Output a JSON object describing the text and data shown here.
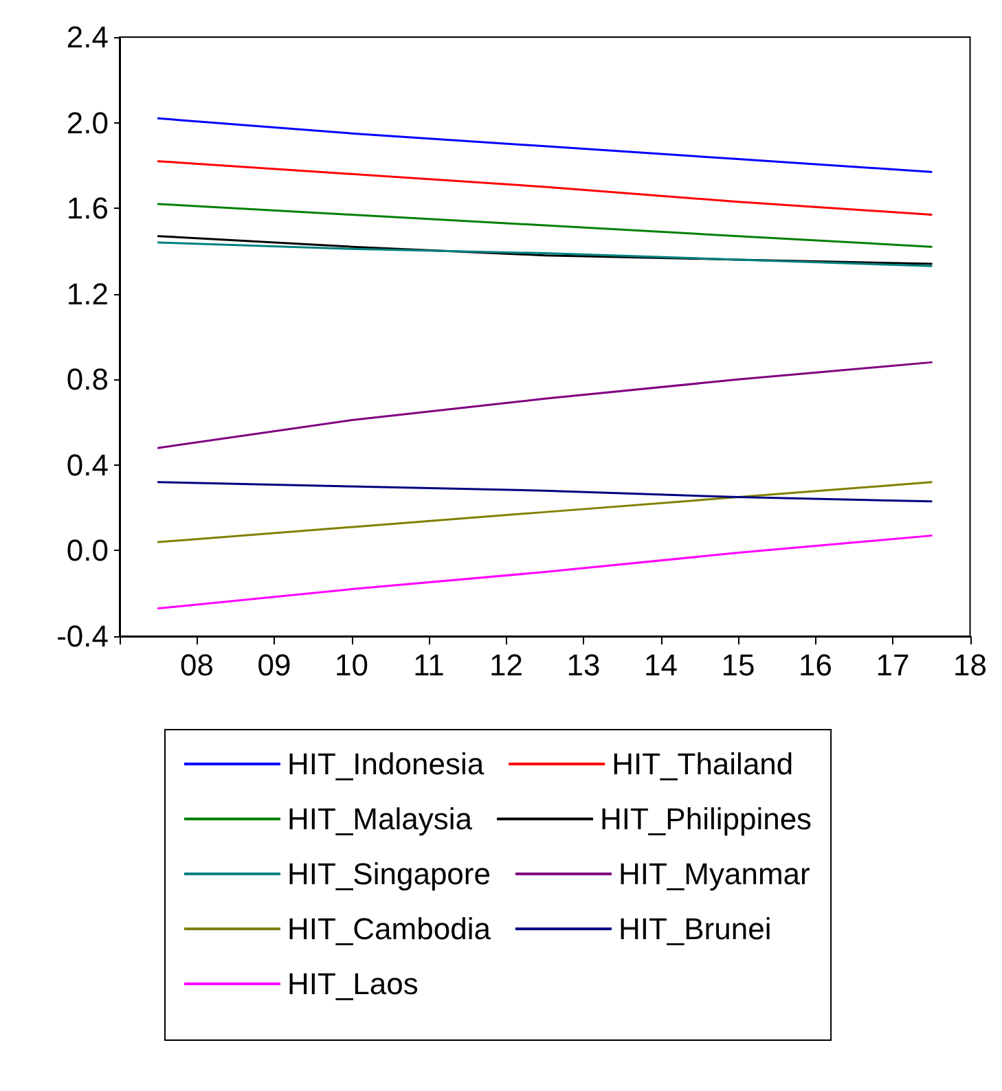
{
  "chart_data": {
    "type": "line",
    "xlim": [
      2007,
      2018
    ],
    "xticks": [
      {
        "value": 2007,
        "label": null
      },
      {
        "value": 2008,
        "label": "08"
      },
      {
        "value": 2009,
        "label": "09"
      },
      {
        "value": 2010,
        "label": "10"
      },
      {
        "value": 2011,
        "label": "11"
      },
      {
        "value": 2012,
        "label": "12"
      },
      {
        "value": 2013,
        "label": "13"
      },
      {
        "value": 2014,
        "label": "14"
      },
      {
        "value": 2015,
        "label": "15"
      },
      {
        "value": 2016,
        "label": "16"
      },
      {
        "value": 2017,
        "label": "17"
      },
      {
        "value": 2018,
        "label": "18"
      }
    ],
    "ylim": [
      -0.4,
      2.4
    ],
    "yticks": [
      -0.4,
      {
        "value": 0,
        "label": "0.0"
      },
      0.4,
      0.8,
      1.2,
      1.6,
      {
        "value": 2,
        "label": "2.0"
      },
      2.4
    ],
    "x": [
      2007.5,
      2010,
      2012.5,
      2015,
      2017.5
    ],
    "series": [
      {
        "name": "HIT_Indonesia",
        "color": "#0000ff",
        "values": [
          2.02,
          1.95,
          1.89,
          1.83,
          1.77
        ]
      },
      {
        "name": "HIT_Thailand",
        "color": "#ff0000",
        "values": [
          1.82,
          1.76,
          1.7,
          1.63,
          1.57
        ]
      },
      {
        "name": "HIT_Malaysia",
        "color": "#008000",
        "values": [
          1.62,
          1.57,
          1.52,
          1.47,
          1.42
        ]
      },
      {
        "name": "HIT_Philippines",
        "color": "#000000",
        "values": [
          1.47,
          1.42,
          1.38,
          1.36,
          1.34
        ]
      },
      {
        "name": "HIT_Singapore",
        "color": "#008080",
        "values": [
          1.44,
          1.41,
          1.39,
          1.36,
          1.33
        ]
      },
      {
        "name": "HIT_Myanmar",
        "color": "#800080",
        "values": [
          0.48,
          0.61,
          0.71,
          0.8,
          0.88
        ]
      },
      {
        "name": "HIT_Cambodia",
        "color": "#808000",
        "values": [
          0.04,
          0.11,
          0.18,
          0.25,
          0.32
        ]
      },
      {
        "name": "HIT_Brunei",
        "color": "#000080",
        "values": [
          0.32,
          0.3,
          0.28,
          0.25,
          0.23
        ]
      },
      {
        "name": "HIT_Laos",
        "color": "#ff00ff",
        "values": [
          -0.27,
          -0.18,
          -0.1,
          -0.01,
          0.07
        ]
      }
    ],
    "grid": false,
    "legend": "bottom",
    "marker": "none",
    "line_style": "solid"
  }
}
